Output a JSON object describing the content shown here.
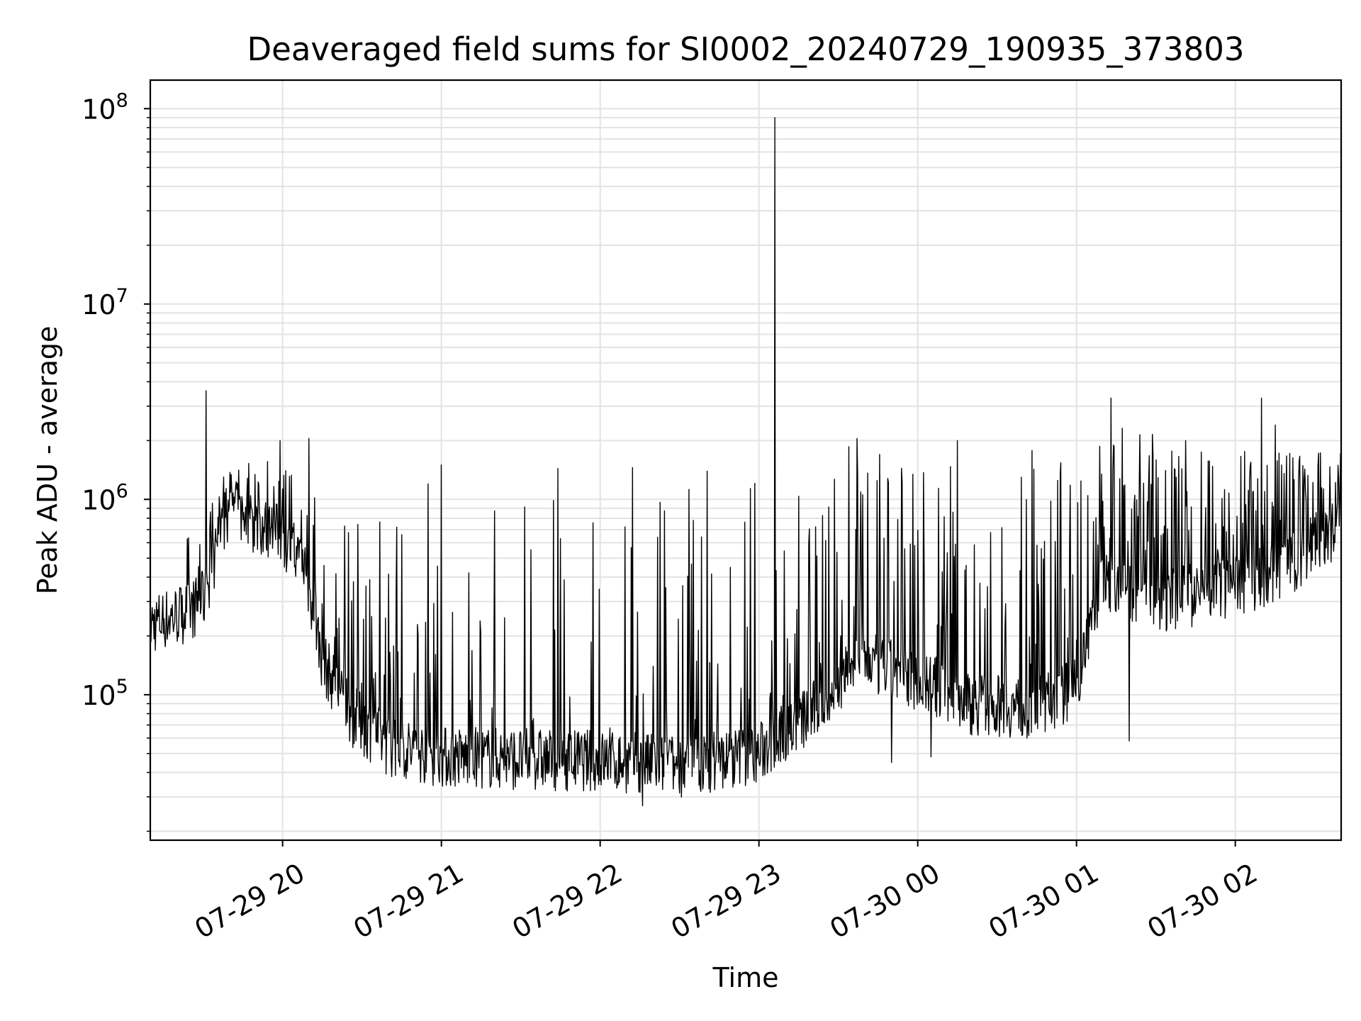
{
  "chart_data": {
    "type": "line",
    "title": "Deaveraged field sums for SI0002_20240729_190935_373803",
    "xlabel": "Time",
    "ylabel": "Peak ADU - average",
    "yscale": "log",
    "ylim": [
      18000,
      140000000
    ],
    "xlim": [
      "2024-07-29 19:10",
      "2024-07-30 02:40"
    ],
    "x_ticks": [
      {
        "t": "2024-07-29 20:00",
        "label": "07-29 20"
      },
      {
        "t": "2024-07-29 21:00",
        "label": "07-29 21"
      },
      {
        "t": "2024-07-29 22:00",
        "label": "07-29 22"
      },
      {
        "t": "2024-07-29 23:00",
        "label": "07-29 23"
      },
      {
        "t": "2024-07-30 00:00",
        "label": "07-30 00"
      },
      {
        "t": "2024-07-30 01:00",
        "label": "07-30 01"
      },
      {
        "t": "2024-07-30 02:00",
        "label": "07-30 02"
      }
    ],
    "y_ticks": [
      {
        "value": 100000,
        "base": "10",
        "exp": "5"
      },
      {
        "value": 1000000,
        "base": "10",
        "exp": "6"
      },
      {
        "value": 10000000,
        "base": "10",
        "exp": "7"
      },
      {
        "value": 100000000,
        "base": "10",
        "exp": "8"
      }
    ],
    "grid": true,
    "line_color": "#000000",
    "series": [
      {
        "baseline": [
          [
            "2024-07-29 19:10",
            230000
          ],
          [
            "2024-07-29 19:25",
            270000
          ],
          [
            "2024-07-29 19:30",
            300000
          ],
          [
            "2024-07-29 19:35",
            550000
          ],
          [
            "2024-07-29 19:40",
            900000
          ],
          [
            "2024-07-29 19:50",
            750000
          ],
          [
            "2024-07-29 20:00",
            650000
          ],
          [
            "2024-07-29 20:08",
            450000
          ],
          [
            "2024-07-29 20:15",
            150000
          ],
          [
            "2024-07-29 20:25",
            80000
          ],
          [
            "2024-07-29 20:40",
            55000
          ],
          [
            "2024-07-29 21:00",
            48000
          ],
          [
            "2024-07-29 21:30",
            47000
          ],
          [
            "2024-07-29 22:00",
            46000
          ],
          [
            "2024-07-29 22:30",
            43000
          ],
          [
            "2024-07-29 23:00",
            50000
          ],
          [
            "2024-07-29 23:10",
            65000
          ],
          [
            "2024-07-29 23:20",
            80000
          ],
          [
            "2024-07-29 23:30",
            110000
          ],
          [
            "2024-07-29 23:38",
            160000
          ],
          [
            "2024-07-29 23:45",
            140000
          ],
          [
            "2024-07-30 00:00",
            120000
          ],
          [
            "2024-07-30 00:20",
            90000
          ],
          [
            "2024-07-30 00:45",
            85000
          ],
          [
            "2024-07-30 01:00",
            110000
          ],
          [
            "2024-07-30 01:10",
            400000
          ],
          [
            "2024-07-30 01:30",
            300000
          ],
          [
            "2024-07-30 02:00",
            350000
          ],
          [
            "2024-07-30 02:20",
            450000
          ],
          [
            "2024-07-30 02:40",
            750000
          ]
        ],
        "spike_level": [
          [
            "2024-07-29 19:10",
            300000
          ],
          [
            "2024-07-29 19:35",
            1300000
          ],
          [
            "2024-07-29 19:50",
            1700000
          ],
          [
            "2024-07-29 20:10",
            1400000
          ],
          [
            "2024-07-29 20:40",
            800000
          ],
          [
            "2024-07-29 21:00",
            700000
          ],
          [
            "2024-07-29 21:30",
            1600000
          ],
          [
            "2024-07-29 22:30",
            1700000
          ],
          [
            "2024-07-29 23:30",
            1900000
          ],
          [
            "2024-07-30 00:00",
            1800000
          ],
          [
            "2024-07-30 01:00",
            1800000
          ],
          [
            "2024-07-30 01:15",
            2500000
          ],
          [
            "2024-07-30 02:00",
            1800000
          ],
          [
            "2024-07-30 02:40",
            1800000
          ]
        ],
        "peaks": [
          [
            "2024-07-29 19:31",
            3600000
          ],
          [
            "2024-07-29 19:59",
            2000000
          ],
          [
            "2024-07-29 20:10",
            2050000
          ],
          [
            "2024-07-29 20:55",
            1200000
          ],
          [
            "2024-07-29 21:00",
            1500000
          ],
          [
            "2024-07-29 23:06",
            90000000
          ],
          [
            "2024-07-29 23:37",
            2050000
          ],
          [
            "2024-07-30 00:15",
            2000000
          ],
          [
            "2024-07-30 01:13",
            3300000
          ],
          [
            "2024-07-30 02:10",
            3300000
          ],
          [
            "2024-07-30 02:15",
            2400000
          ]
        ],
        "dips": [
          [
            "2024-07-29 22:16",
            27000
          ],
          [
            "2024-07-29 22:38",
            32000
          ],
          [
            "2024-07-29 23:50",
            45000
          ],
          [
            "2024-07-30 00:05",
            48000
          ],
          [
            "2024-07-30 01:20",
            58000
          ]
        ]
      }
    ]
  }
}
